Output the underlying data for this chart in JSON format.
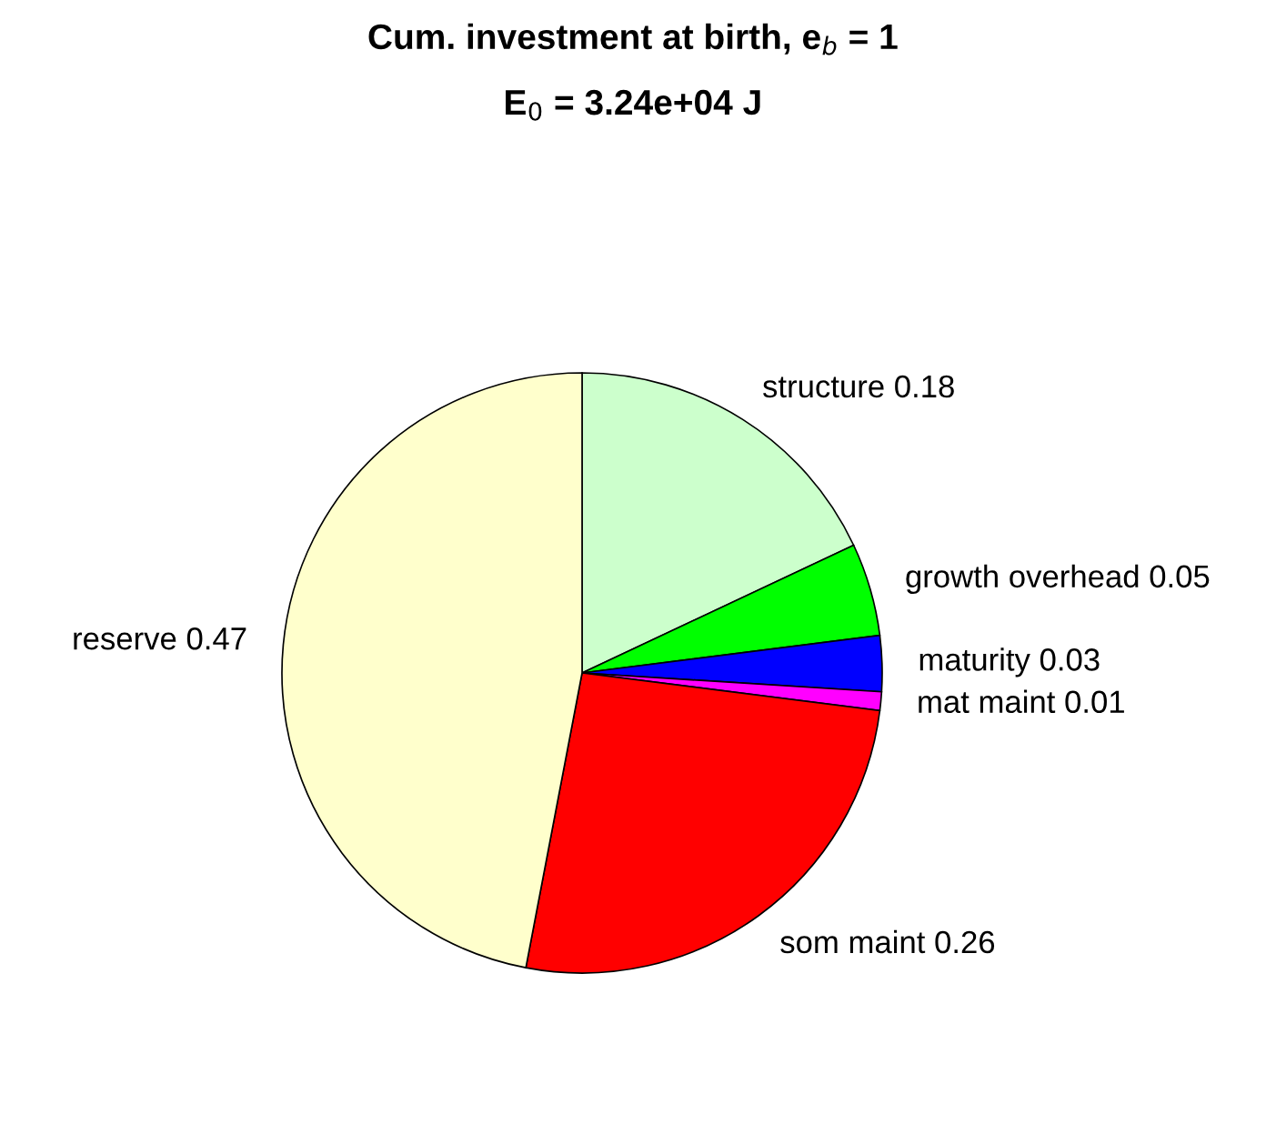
{
  "chart_data": {
    "type": "pie",
    "title": "Cum. investment at birth, e$_{b}$ = 1",
    "subtitle": "E$_{0}$ = 3.24e+04 J",
    "categories": [
      "structure 0.18",
      "growth overhead 0.05",
      "maturity 0.03",
      "mat maint 0.01",
      "som maint 0.26",
      "reserve 0.47"
    ],
    "values": [
      0.18,
      0.05,
      0.03,
      0.01,
      0.26,
      0.47
    ],
    "colors": [
      "#ccffcc",
      "#00ff00",
      "#0000ff",
      "#ff00ff",
      "#ff0000",
      "#ffffcc"
    ]
  }
}
